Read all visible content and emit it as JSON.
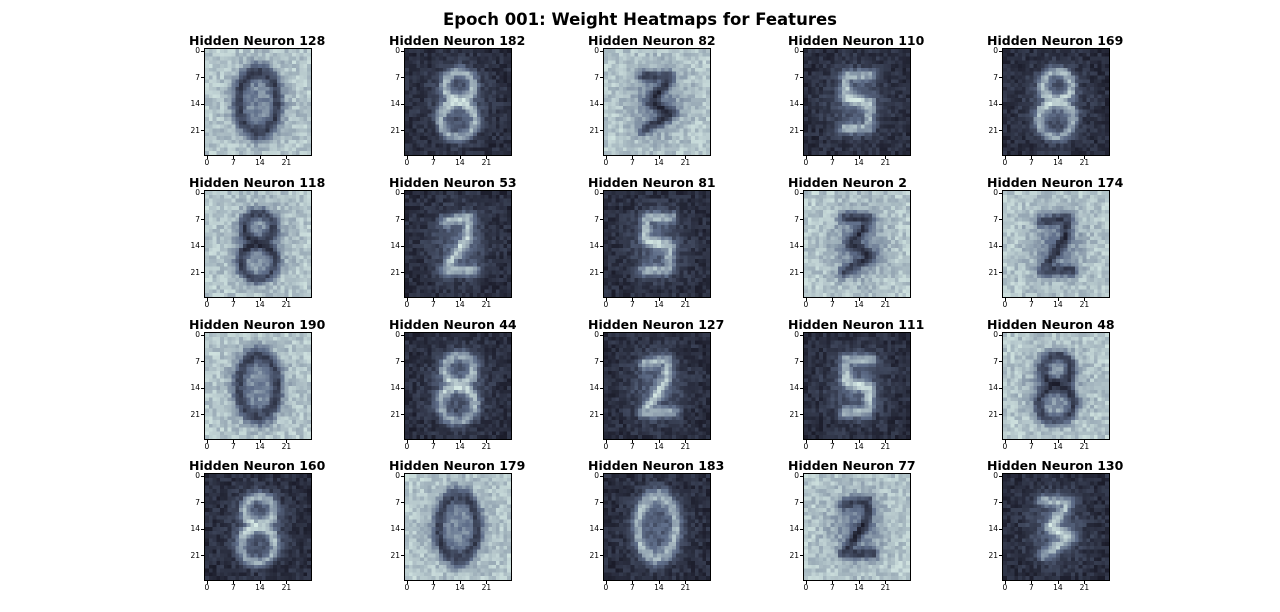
{
  "chart_data": {
    "type": "heatmap",
    "title": "Epoch 001: Weight Heatmaps for Features",
    "grid": false,
    "layout": "4 rows x 5 columns",
    "image_size": [
      28,
      28
    ],
    "xticks": [
      "0",
      "7",
      "14",
      "21"
    ],
    "yticks": [
      "0",
      "7",
      "14",
      "21"
    ],
    "colormap": "bone",
    "colors": {
      "low": "#1b1c2a",
      "mid": "#5f6e8a",
      "high": "#d8ebe6"
    },
    "panels": [
      {
        "title": "Hidden Neuron 128",
        "background": "light",
        "digit": "0"
      },
      {
        "title": "Hidden Neuron 182",
        "background": "dark",
        "digit": "8"
      },
      {
        "title": "Hidden Neuron 82",
        "background": "light",
        "digit": "3"
      },
      {
        "title": "Hidden Neuron 110",
        "background": "dark",
        "digit": "5"
      },
      {
        "title": "Hidden Neuron 169",
        "background": "dark",
        "digit": "8"
      },
      {
        "title": "Hidden Neuron 118",
        "background": "light",
        "digit": "8"
      },
      {
        "title": "Hidden Neuron 53",
        "background": "dark",
        "digit": "2"
      },
      {
        "title": "Hidden Neuron 81",
        "background": "dark",
        "digit": "5"
      },
      {
        "title": "Hidden Neuron 2",
        "background": "light",
        "digit": "3"
      },
      {
        "title": "Hidden Neuron 174",
        "background": "light",
        "digit": "2"
      },
      {
        "title": "Hidden Neuron 190",
        "background": "light",
        "digit": "0"
      },
      {
        "title": "Hidden Neuron 44",
        "background": "dark",
        "digit": "8"
      },
      {
        "title": "Hidden Neuron 127",
        "background": "dark",
        "digit": "2"
      },
      {
        "title": "Hidden Neuron 111",
        "background": "dark",
        "digit": "5"
      },
      {
        "title": "Hidden Neuron 48",
        "background": "light",
        "digit": "8"
      },
      {
        "title": "Hidden Neuron 160",
        "background": "dark",
        "digit": "8"
      },
      {
        "title": "Hidden Neuron 179",
        "background": "light",
        "digit": "0"
      },
      {
        "title": "Hidden Neuron 183",
        "background": "dark",
        "digit": "0"
      },
      {
        "title": "Hidden Neuron 77",
        "background": "light",
        "digit": "2"
      },
      {
        "title": "Hidden Neuron 130",
        "background": "dark",
        "digit": "3"
      }
    ]
  }
}
